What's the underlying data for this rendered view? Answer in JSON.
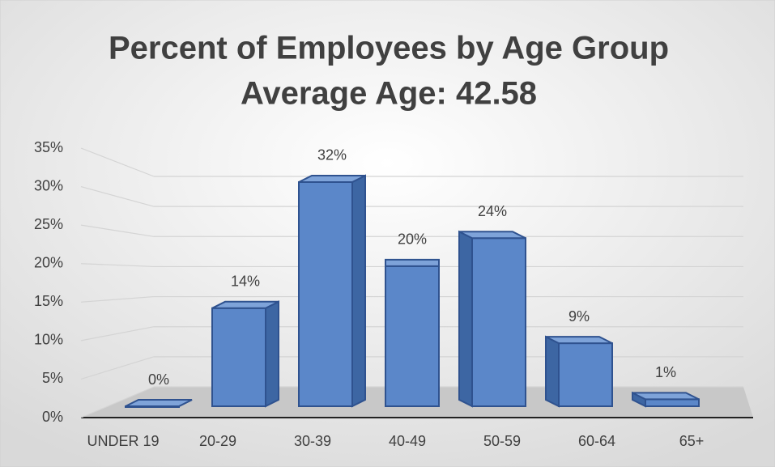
{
  "chart_data": {
    "type": "bar3d",
    "title": "Percent of Employees by Age Group",
    "subtitle": "Average Age: 42.58",
    "categories": [
      "UNDER 19",
      "20-29",
      "30-39",
      "40-49",
      "50-59",
      "60-64",
      "65+"
    ],
    "values": [
      0,
      14,
      32,
      20,
      24,
      9,
      1
    ],
    "value_labels": [
      "0%",
      "14%",
      "32%",
      "20%",
      "24%",
      "9%",
      "1%"
    ],
    "color": "#5b87c9",
    "ylim": [
      0,
      35
    ],
    "yticks": [
      {
        "value": 0,
        "label": "0%"
      },
      {
        "value": 5,
        "label": "5%"
      },
      {
        "value": 10,
        "label": "10%"
      },
      {
        "value": 15,
        "label": "15%"
      },
      {
        "value": 20,
        "label": "20%"
      },
      {
        "value": 25,
        "label": "25%"
      },
      {
        "value": 30,
        "label": "30%"
      },
      {
        "value": 35,
        "label": "35%"
      }
    ],
    "grid": true
  }
}
